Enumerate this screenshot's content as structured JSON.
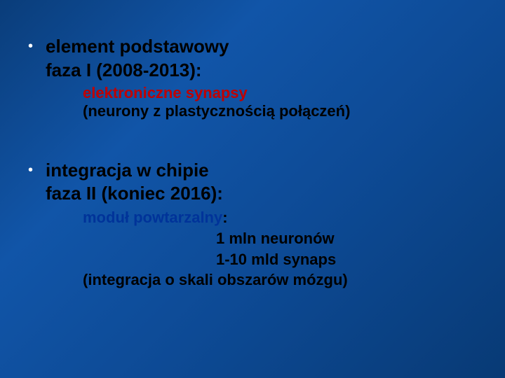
{
  "colors": {
    "background_gradient_start": "#0a3d7a",
    "background_gradient_mid": "#1155a8",
    "background_gradient_end": "#083a75",
    "bullet_color": "#ffffff",
    "main_text_color": "#000000",
    "highlight_red": "#c00000",
    "highlight_blue": "#003399"
  },
  "typography": {
    "font_family": "Verdana",
    "main_fontsize_pt": 20,
    "sub_fontsize_pt": 17,
    "font_weight": "bold"
  },
  "bullets": [
    {
      "main_line1": "element podstawowy",
      "main_line2": "faza I (2008-2013):",
      "sub_highlight": "elektroniczne synapsy",
      "sub_detail": "(neurony z plastycznością  połączeń)"
    },
    {
      "main_line1": "integracja w chipie",
      "main_line2": "faza II (koniec 2016):",
      "sub_highlight": "moduł powtarzalny",
      "sub_colon": ":",
      "detail_line1": "1 mln neuronów",
      "detail_line2": "1-10 mld synaps",
      "detail_line3": "(integracja o skali obszarów mózgu)"
    }
  ]
}
